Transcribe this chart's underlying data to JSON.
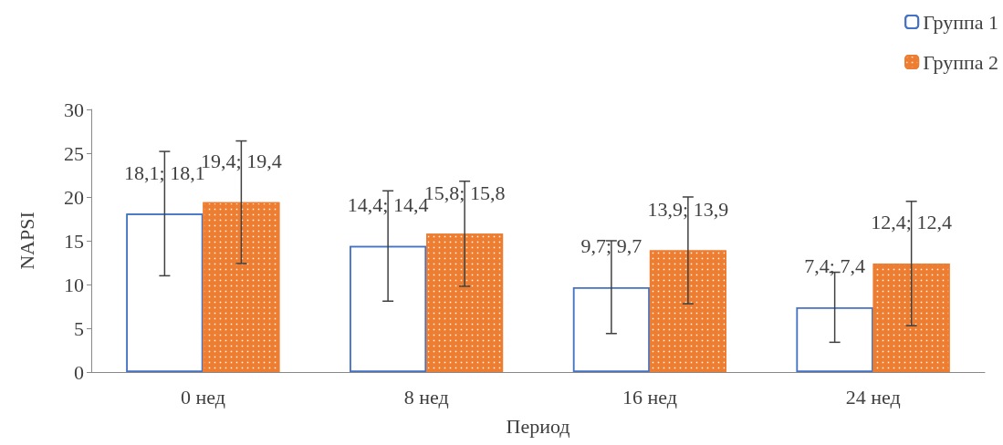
{
  "chart_data": {
    "type": "bar",
    "xlabel": "Период",
    "ylabel": "NAPSI",
    "categories": [
      "0 нед",
      "8 нед",
      "16 нед",
      "24 нед"
    ],
    "series": [
      {
        "name": "Группа 1",
        "color": "#4472c4",
        "values": [
          18.1,
          14.4,
          9.7,
          7.4
        ],
        "errors": [
          7.1,
          6.3,
          5.3,
          4.0
        ],
        "value_labels": [
          "18,1; 18,1",
          "14,4; 14,4",
          "9,7; 9,7",
          "7,4; 7,4"
        ]
      },
      {
        "name": "Группа 2",
        "color": "#ed7d31",
        "values": [
          19.4,
          15.8,
          13.9,
          12.4
        ],
        "errors": [
          7.0,
          6.0,
          6.1,
          7.1
        ],
        "value_labels": [
          "19,4; 19,4",
          "15,8; 15,8",
          "13,9; 13,9",
          "12,4; 12,4"
        ]
      }
    ],
    "ylim": [
      0,
      30
    ],
    "yticks": [
      0,
      5,
      10,
      15,
      20,
      25,
      30
    ],
    "grid": false,
    "legend": "top right"
  }
}
